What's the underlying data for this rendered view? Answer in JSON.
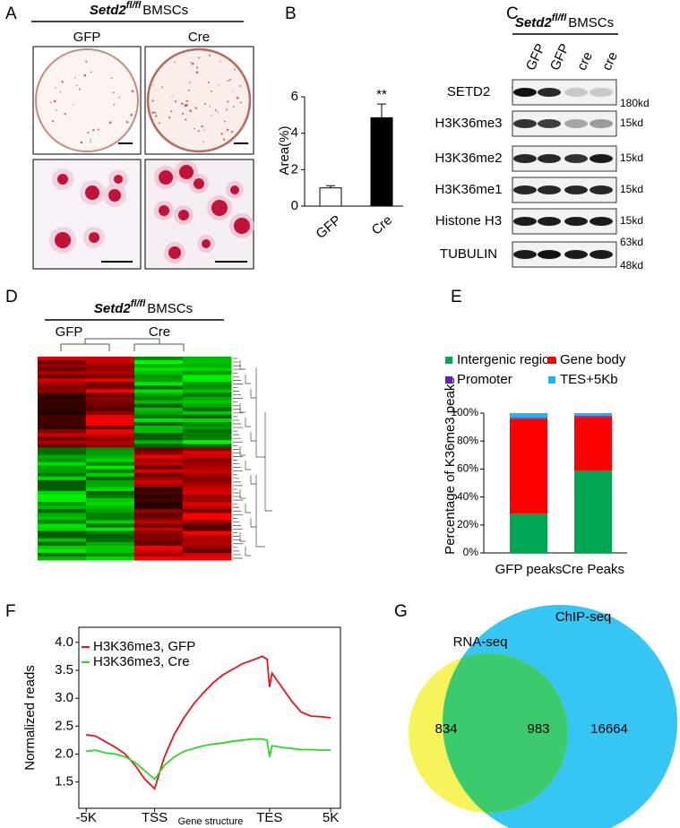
{
  "panel_labels": [
    "A",
    "B",
    "C",
    "D",
    "E",
    "F",
    "G"
  ],
  "panel_a": {
    "title": {
      "gene": "Setd2",
      "superscript": "fl/fl",
      "cells": "BMSCs"
    },
    "columns": [
      "GFP",
      "Cre"
    ]
  },
  "panel_c": {
    "title": {
      "gene": "Setd2",
      "superscript": "fl/fl",
      "cells": "BMSCs"
    },
    "lanes": [
      "GFP",
      "GFP",
      "cre",
      "cre"
    ],
    "rows": [
      {
        "label": "SETD2",
        "sizes": [
          "180kd"
        ]
      },
      {
        "label": "H3K36me3",
        "sizes": [
          "15kd"
        ]
      },
      {
        "label": "H3K36me2",
        "sizes": [
          "15kd"
        ]
      },
      {
        "label": "H3K36me1",
        "sizes": [
          "15kd"
        ]
      },
      {
        "label": "Histone H3",
        "sizes": [
          "15kd"
        ]
      },
      {
        "label": "TUBULIN",
        "sizes": [
          "63kd",
          "48kd"
        ]
      }
    ]
  },
  "panel_d": {
    "title": {
      "gene": "Setd2",
      "superscript": "fl/fl",
      "cells": "BMSCs"
    },
    "groups": [
      "GFP",
      "Cre"
    ]
  },
  "chart_data": [
    {
      "type": "bar",
      "categories": [
        "GFP",
        "Cre"
      ],
      "values": [
        1.0,
        4.85
      ],
      "errors": [
        0.12,
        0.75
      ],
      "colors": [
        "#ffffff",
        "#000000"
      ],
      "ylabel": "Area(%)",
      "ylim": [
        0,
        6
      ],
      "yticks": [
        0,
        2,
        4,
        6
      ],
      "annotations": [
        null,
        "**"
      ]
    },
    {
      "type": "stacked_bar",
      "categories": [
        "GFP peaks",
        "Cre Peaks"
      ],
      "series": [
        {
          "name": "Intergenic region",
          "color": "#00a651",
          "values": [
            28,
            59
          ]
        },
        {
          "name": "Gene body",
          "color": "#ff0000",
          "values": [
            68,
            38
          ]
        },
        {
          "name": "Promoter",
          "color": "#6a1fb0",
          "values": [
            0.5,
            1
          ]
        },
        {
          "name": "TES+5Kb",
          "color": "#1eb4ec",
          "values": [
            3.5,
            2
          ]
        }
      ],
      "ylabel": "Percentage of K36me3 peaks",
      "ylim": [
        0,
        100
      ],
      "yticks": [
        {
          "value": 0,
          "label": "0%"
        },
        {
          "value": 20,
          "label": "20%"
        },
        {
          "value": 40,
          "label": "40%"
        },
        {
          "value": 60,
          "label": "60%"
        },
        {
          "value": 80,
          "label": "80%"
        },
        {
          "value": 100,
          "label": "100%"
        }
      ]
    },
    {
      "type": "line",
      "xlabel": "Gene structure",
      "ylabel": "Normalized reads",
      "x": [
        0,
        4,
        8,
        12,
        16,
        20,
        24,
        28,
        32,
        36,
        40,
        44,
        48,
        52,
        56,
        60,
        64,
        68,
        72,
        74,
        75,
        76,
        80,
        84,
        88,
        92,
        96,
        100
      ],
      "series": [
        {
          "name": "H3K36me3, GFP",
          "color": "#e8131b",
          "values": [
            2.35,
            2.32,
            2.22,
            2.12,
            2.0,
            1.8,
            1.55,
            1.38,
            1.95,
            2.35,
            2.65,
            2.9,
            3.1,
            3.28,
            3.42,
            3.52,
            3.62,
            3.68,
            3.75,
            3.7,
            3.2,
            3.45,
            3.2,
            2.95,
            2.75,
            2.68,
            2.67,
            2.65
          ]
        },
        {
          "name": "H3K36me3, Cre",
          "color": "#2fd62a",
          "values": [
            2.05,
            2.07,
            2.02,
            2.0,
            1.95,
            1.85,
            1.7,
            1.55,
            1.8,
            1.95,
            2.05,
            2.1,
            2.15,
            2.18,
            2.2,
            2.23,
            2.25,
            2.27,
            2.27,
            2.25,
            1.95,
            2.15,
            2.12,
            2.1,
            2.08,
            2.08,
            2.07,
            2.07
          ]
        }
      ],
      "xlim": [
        -3,
        104
      ],
      "xticks": [
        {
          "value": 0,
          "label": "-5K"
        },
        {
          "value": 28,
          "label": "TSS"
        },
        {
          "value": 75,
          "label": "TES"
        },
        {
          "value": 100,
          "label": "5K"
        }
      ],
      "ylim": [
        1.03,
        4.27
      ],
      "yticks": [
        1.5,
        {
          "value": 2,
          "label": "2.0"
        },
        2.5,
        {
          "value": 3,
          "label": "3.0"
        },
        3.5,
        {
          "value": 4,
          "label": "4.0"
        }
      ]
    },
    {
      "type": "venn",
      "sets": [
        {
          "name": "RNA-seq",
          "color": "#f7f35a"
        },
        {
          "name": "ChIP-seq",
          "color": "#35c6f4"
        }
      ],
      "overlap_color": "#3ccb6c",
      "values": [
        834,
        983,
        16664
      ]
    }
  ]
}
